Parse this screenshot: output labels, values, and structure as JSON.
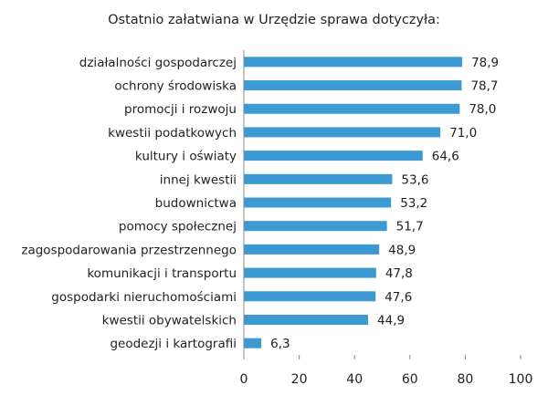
{
  "chart_data": {
    "type": "bar",
    "orientation": "horizontal",
    "title": "Ostatnio załatwiana w Urzędzie sprawa dotyczyła:",
    "categories": [
      "działalności gospodarczej",
      "ochrony środowiska",
      "promocji i rozwoju",
      "kwestii podatkowych",
      "kultury i oświaty",
      "innej kwestii",
      "budownictwa",
      "pomocy społecznej",
      "zagospodarowania przestrzennego",
      "komunikacji i transportu",
      "gospodarki nieruchomościami",
      "kwestii obywatelskich",
      "geodezji i kartografii"
    ],
    "values": [
      78.9,
      78.7,
      78.0,
      71.0,
      64.6,
      53.6,
      53.2,
      51.7,
      48.9,
      47.8,
      47.6,
      44.9,
      6.3
    ],
    "value_labels": [
      "78,9",
      "78,7",
      "78,0",
      "71,0",
      "64,6",
      "53,6",
      "53,2",
      "51,7",
      "48,9",
      "47,8",
      "47,6",
      "44,9",
      "6,3"
    ],
    "xlim": [
      0,
      100
    ],
    "xticks": [
      0,
      20,
      40,
      60,
      80,
      100
    ],
    "xlabel": "",
    "ylabel": "",
    "grid": false,
    "bar_color": "#3a9ad1"
  }
}
